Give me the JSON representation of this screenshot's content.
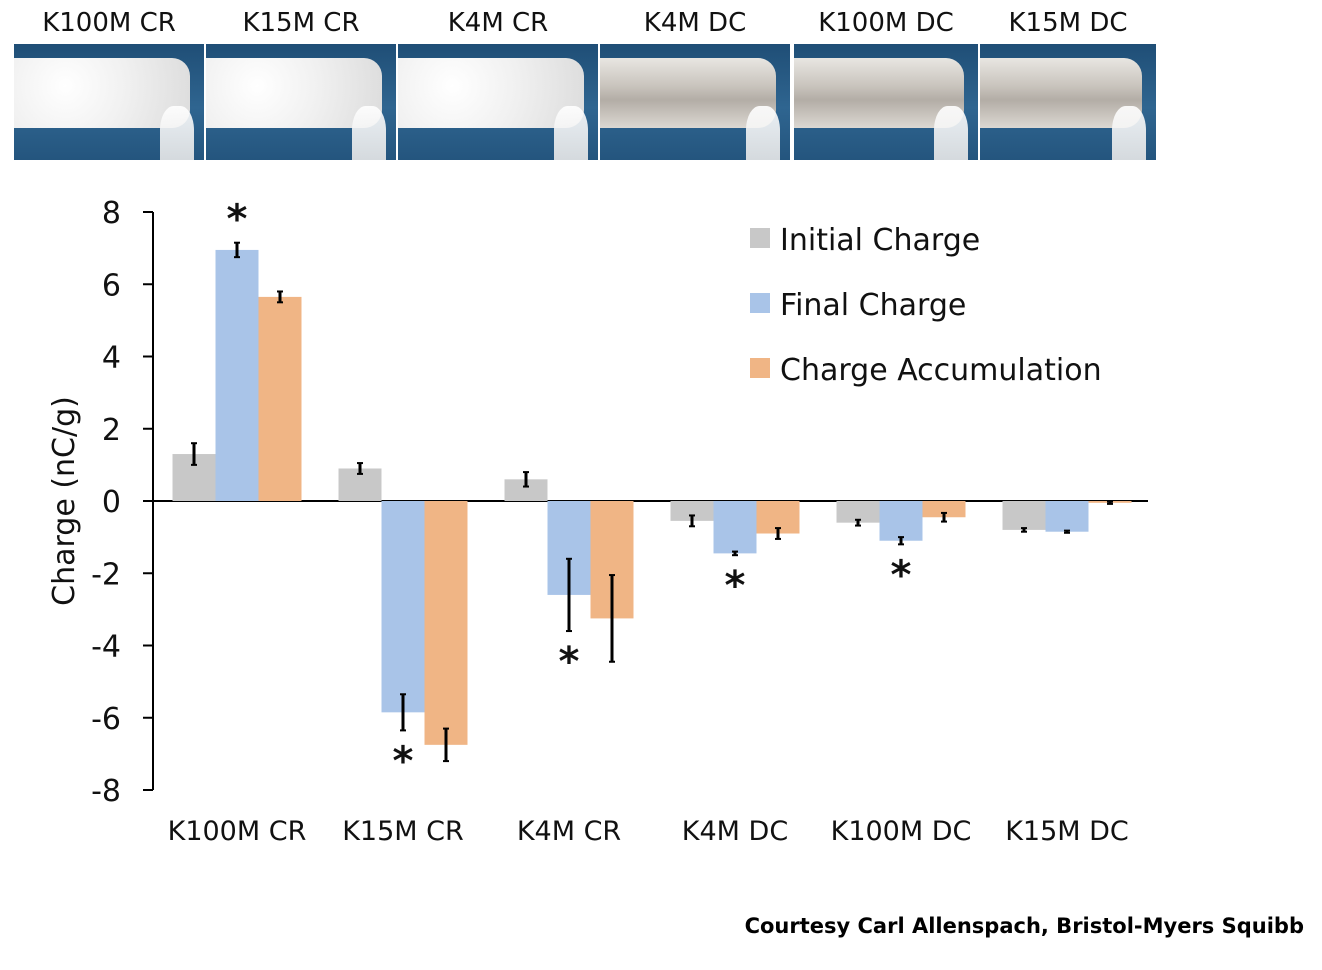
{
  "photos": [
    {
      "label": "K100M CR",
      "texture": "fluffy"
    },
    {
      "label": "K15M CR",
      "texture": "fluffy"
    },
    {
      "label": "K4M CR",
      "texture": "fluffy"
    },
    {
      "label": "K4M DC",
      "texture": "smooth"
    },
    {
      "label": "K100M DC",
      "texture": "smooth"
    },
    {
      "label": "K15M DC",
      "texture": "smooth"
    }
  ],
  "chart_data": {
    "type": "bar",
    "title": "",
    "xlabel": "",
    "ylabel": "Charge (nC/g)",
    "ylim": [
      -8,
      8
    ],
    "yticks": [
      "-8",
      "-6",
      "-4",
      "-2",
      "0",
      "2",
      "4",
      "6",
      "8"
    ],
    "categories": [
      "K100M CR",
      "K15M CR",
      "K4M CR",
      "K4M DC",
      "K100M DC",
      "K15M DC"
    ],
    "legend_position": "top-right",
    "grid": false,
    "significance_marker": "*",
    "series": [
      {
        "name": "Initial Charge",
        "color": "#c8c8c8",
        "values": [
          1.3,
          0.9,
          0.6,
          -0.55,
          -0.6,
          -0.8
        ],
        "errors": [
          0.3,
          0.15,
          0.2,
          0.15,
          0.08,
          0.05
        ],
        "significant": [
          false,
          false,
          false,
          false,
          false,
          false
        ]
      },
      {
        "name": "Final Charge",
        "color": "#a9c4e8",
        "values": [
          6.95,
          -5.85,
          -2.6,
          -1.45,
          -1.1,
          -0.85
        ],
        "errors": [
          0.2,
          0.5,
          1.0,
          0.05,
          0.1,
          0.03
        ],
        "significant": [
          true,
          true,
          true,
          true,
          true,
          false
        ]
      },
      {
        "name": "Charge Accumulation",
        "color": "#f0b585",
        "values": [
          5.65,
          -6.75,
          -3.25,
          -0.9,
          -0.45,
          -0.05
        ],
        "errors": [
          0.15,
          0.45,
          1.2,
          0.15,
          0.12,
          0.03
        ],
        "significant": [
          false,
          false,
          false,
          false,
          false,
          false
        ]
      }
    ]
  },
  "credit": "Courtesy Carl Allenspach, Bristol-Myers Squibb"
}
